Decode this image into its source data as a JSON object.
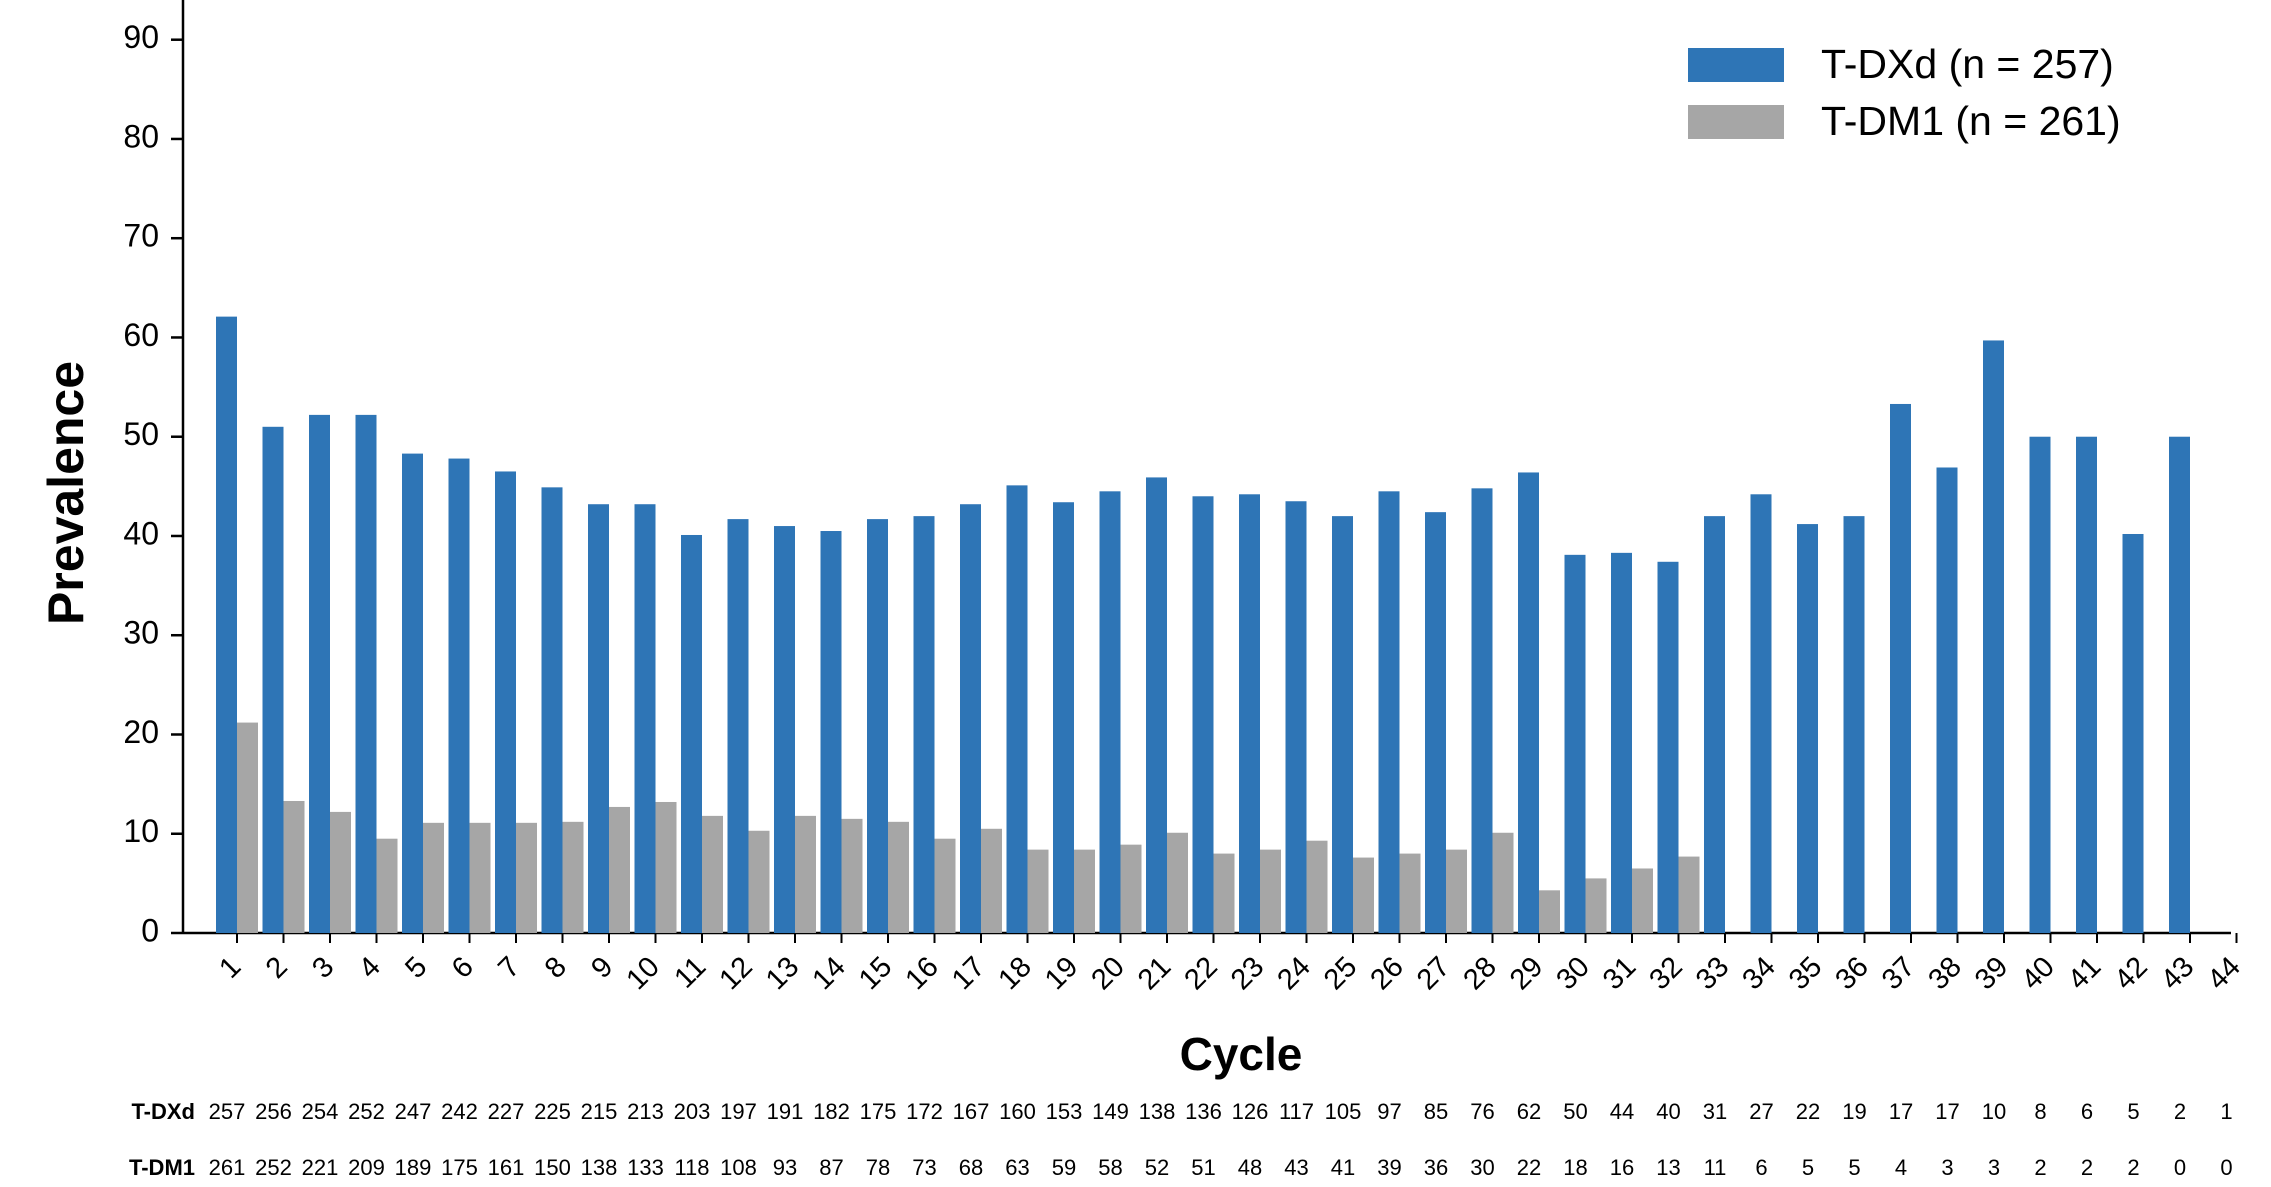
{
  "chart_data": {
    "type": "bar",
    "x_label": "Cycle",
    "y_label": "Prevalence",
    "categories": [
      "1",
      "2",
      "3",
      "4",
      "5",
      "6",
      "7",
      "8",
      "9",
      "10",
      "11",
      "12",
      "13",
      "14",
      "15",
      "16",
      "17",
      "18",
      "19",
      "20",
      "21",
      "22",
      "23",
      "24",
      "25",
      "26",
      "27",
      "28",
      "29",
      "30",
      "31",
      "32",
      "33",
      "34",
      "35",
      "36",
      "37",
      "38",
      "39",
      "40",
      "41",
      "42",
      "43",
      "44"
    ],
    "series": [
      {
        "name": "T-DXd (n = 257)",
        "color": "#2e75b6",
        "values": [
          62.1,
          51,
          52.2,
          52.2,
          48.3,
          47.8,
          46.5,
          44.9,
          43.2,
          43.2,
          40.1,
          41.7,
          41,
          40.5,
          41.7,
          42,
          43.2,
          45.1,
          43.4,
          44.5,
          45.9,
          44,
          44.2,
          43.5,
          42,
          44.5,
          42.4,
          44.8,
          46.4,
          38.1,
          38.3,
          37.4,
          42,
          44.2,
          41.2,
          42,
          53.3,
          46.9,
          59.7,
          50,
          50,
          40.2,
          50,
          null
        ]
      },
      {
        "name": "T-DM1 (n = 261)",
        "color": "#a6a6a6",
        "values": [
          21.2,
          13.3,
          12.2,
          9.5,
          11.1,
          11.1,
          11.1,
          11.2,
          12.7,
          13.2,
          11.8,
          10.3,
          11.8,
          11.5,
          11.2,
          9.5,
          10.5,
          8.4,
          8.4,
          8.9,
          10.1,
          8,
          8.4,
          9.3,
          7.6,
          8,
          8.4,
          10.1,
          4.3,
          5.5,
          6.5,
          7.7,
          null,
          null,
          null,
          null,
          null,
          null,
          null,
          null,
          null,
          null,
          null,
          null
        ]
      }
    ],
    "ylim": [
      0,
      94
    ],
    "yticks": [
      0,
      10,
      20,
      30,
      40,
      50,
      60,
      70,
      80,
      90
    ],
    "legend": "upper right",
    "at_risk": [
      {
        "label": "T-DXd",
        "values": [
          257,
          256,
          254,
          252,
          247,
          242,
          227,
          225,
          215,
          213,
          203,
          197,
          191,
          182,
          175,
          172,
          167,
          160,
          153,
          149,
          138,
          136,
          126,
          117,
          105,
          97,
          85,
          76,
          62,
          50,
          44,
          40,
          31,
          27,
          22,
          19,
          17,
          17,
          10,
          8,
          6,
          5,
          2,
          1
        ]
      },
      {
        "label": "T-DM1",
        "values": [
          261,
          252,
          221,
          209,
          189,
          175,
          161,
          150,
          138,
          133,
          118,
          108,
          93,
          87,
          78,
          73,
          68,
          63,
          59,
          58,
          52,
          51,
          48,
          43,
          41,
          39,
          36,
          30,
          22,
          18,
          16,
          13,
          11,
          6,
          5,
          5,
          4,
          3,
          3,
          2,
          2,
          2,
          0,
          0
        ]
      }
    ]
  }
}
